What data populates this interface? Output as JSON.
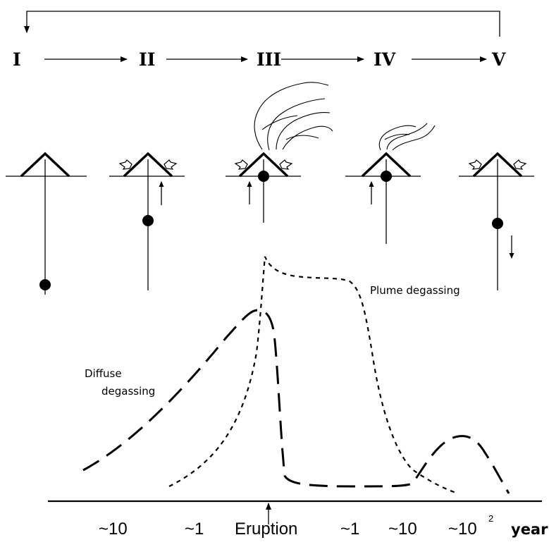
{
  "stages": [
    "I",
    "II",
    "III",
    "IV",
    "V"
  ],
  "labels": {
    "plume": "Plume degassing",
    "diffuse_line1": "Diffuse",
    "diffuse_line2": "degassing"
  },
  "axis": {
    "ticks": [
      {
        "prefix": "~",
        "num": "10",
        "sup": ""
      },
      {
        "prefix": "~",
        "num": "1",
        "sup": ""
      },
      {
        "prefix": "",
        "num": "Eruption",
        "sup": ""
      },
      {
        "prefix": "~",
        "num": "1",
        "sup": ""
      },
      {
        "prefix": "~",
        "num": "10",
        "sup": ""
      },
      {
        "prefix": "~",
        "num": "10",
        "sup": "2"
      }
    ],
    "unit": "year"
  }
}
